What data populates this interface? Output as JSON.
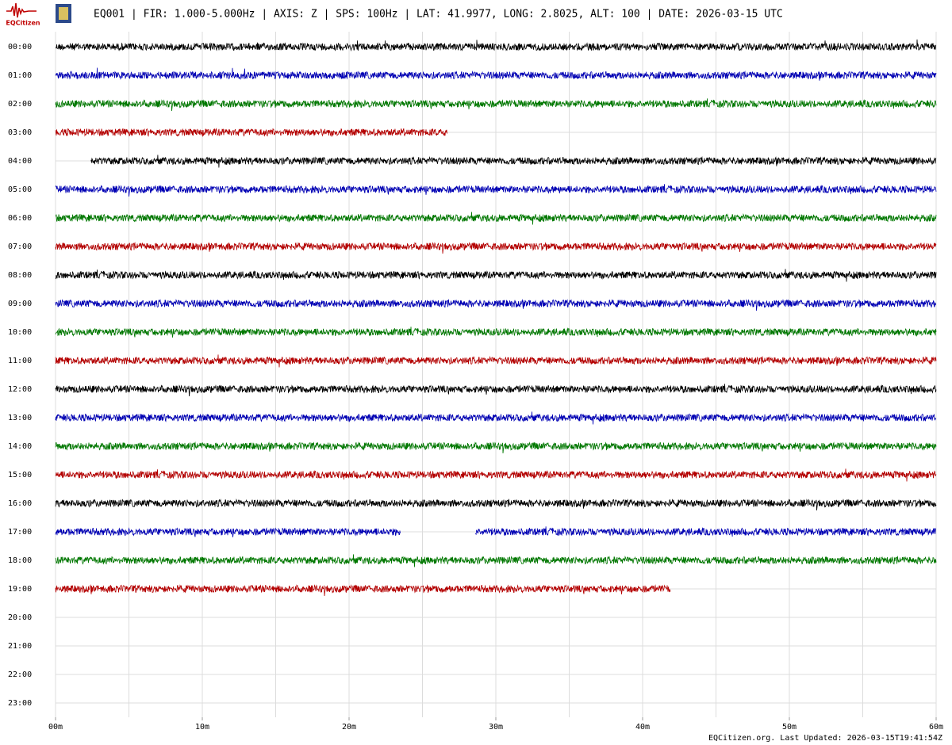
{
  "chart_data": {
    "type": "helicorder",
    "logo": "EQCitizen",
    "title": "EQ001 | FIR: 1.000-5.000Hz | AXIS: Z | SPS: 100Hz | LAT: 41.9977, LONG: 2.8025, ALT: 100 | DATE: 2026-03-15 UTC",
    "footer": "EQCitizen.org. Last Updated: 2026-03-15T19:41:54Z",
    "xlim": [
      0,
      60
    ],
    "xticks": [
      {
        "value": 0,
        "label": "00m"
      },
      {
        "value": 10,
        "label": "10m"
      },
      {
        "value": 20,
        "label": "20m"
      },
      {
        "value": 30,
        "label": "30m"
      },
      {
        "value": 40,
        "label": "40m"
      },
      {
        "value": 50,
        "label": "50m"
      },
      {
        "value": 60,
        "label": "60m"
      }
    ],
    "minor_xticks": [
      5,
      15,
      25,
      35,
      45,
      55
    ],
    "grid": true,
    "rows": [
      {
        "label": "00:00",
        "color": "#000000",
        "segments": [
          [
            0,
            60
          ]
        ]
      },
      {
        "label": "01:00",
        "color": "#0000b4",
        "segments": [
          [
            0,
            60
          ]
        ]
      },
      {
        "label": "02:00",
        "color": "#007800",
        "segments": [
          [
            0,
            60
          ]
        ]
      },
      {
        "label": "03:00",
        "color": "#b40000",
        "segments": [
          [
            0,
            26.7
          ]
        ]
      },
      {
        "label": "04:00",
        "color": "#000000",
        "segments": [
          [
            2.4,
            60
          ]
        ]
      },
      {
        "label": "05:00",
        "color": "#0000b4",
        "segments": [
          [
            0,
            60
          ]
        ]
      },
      {
        "label": "06:00",
        "color": "#007800",
        "segments": [
          [
            0,
            60
          ]
        ]
      },
      {
        "label": "07:00",
        "color": "#b40000",
        "segments": [
          [
            0,
            60
          ]
        ]
      },
      {
        "label": "08:00",
        "color": "#000000",
        "segments": [
          [
            0,
            60
          ]
        ]
      },
      {
        "label": "09:00",
        "color": "#0000b4",
        "segments": [
          [
            0,
            60
          ]
        ]
      },
      {
        "label": "10:00",
        "color": "#007800",
        "segments": [
          [
            0,
            60
          ]
        ]
      },
      {
        "label": "11:00",
        "color": "#b40000",
        "segments": [
          [
            0,
            60
          ]
        ]
      },
      {
        "label": "12:00",
        "color": "#000000",
        "segments": [
          [
            0,
            60
          ]
        ]
      },
      {
        "label": "13:00",
        "color": "#0000b4",
        "segments": [
          [
            0,
            60
          ]
        ]
      },
      {
        "label": "14:00",
        "color": "#007800",
        "segments": [
          [
            0,
            60
          ]
        ]
      },
      {
        "label": "15:00",
        "color": "#b40000",
        "segments": [
          [
            0,
            60
          ]
        ]
      },
      {
        "label": "16:00",
        "color": "#000000",
        "segments": [
          [
            0,
            60
          ]
        ]
      },
      {
        "label": "17:00",
        "color": "#0000b4",
        "segments": [
          [
            0,
            23.5
          ],
          [
            28.6,
            60
          ]
        ]
      },
      {
        "label": "18:00",
        "color": "#007800",
        "segments": [
          [
            0,
            60
          ]
        ]
      },
      {
        "label": "19:00",
        "color": "#b40000",
        "segments": [
          [
            0,
            41.9
          ]
        ]
      },
      {
        "label": "20:00",
        "color": "#000000",
        "segments": []
      },
      {
        "label": "21:00",
        "color": "#0000b4",
        "segments": []
      },
      {
        "label": "22:00",
        "color": "#007800",
        "segments": []
      },
      {
        "label": "23:00",
        "color": "#b40000",
        "segments": []
      }
    ]
  }
}
